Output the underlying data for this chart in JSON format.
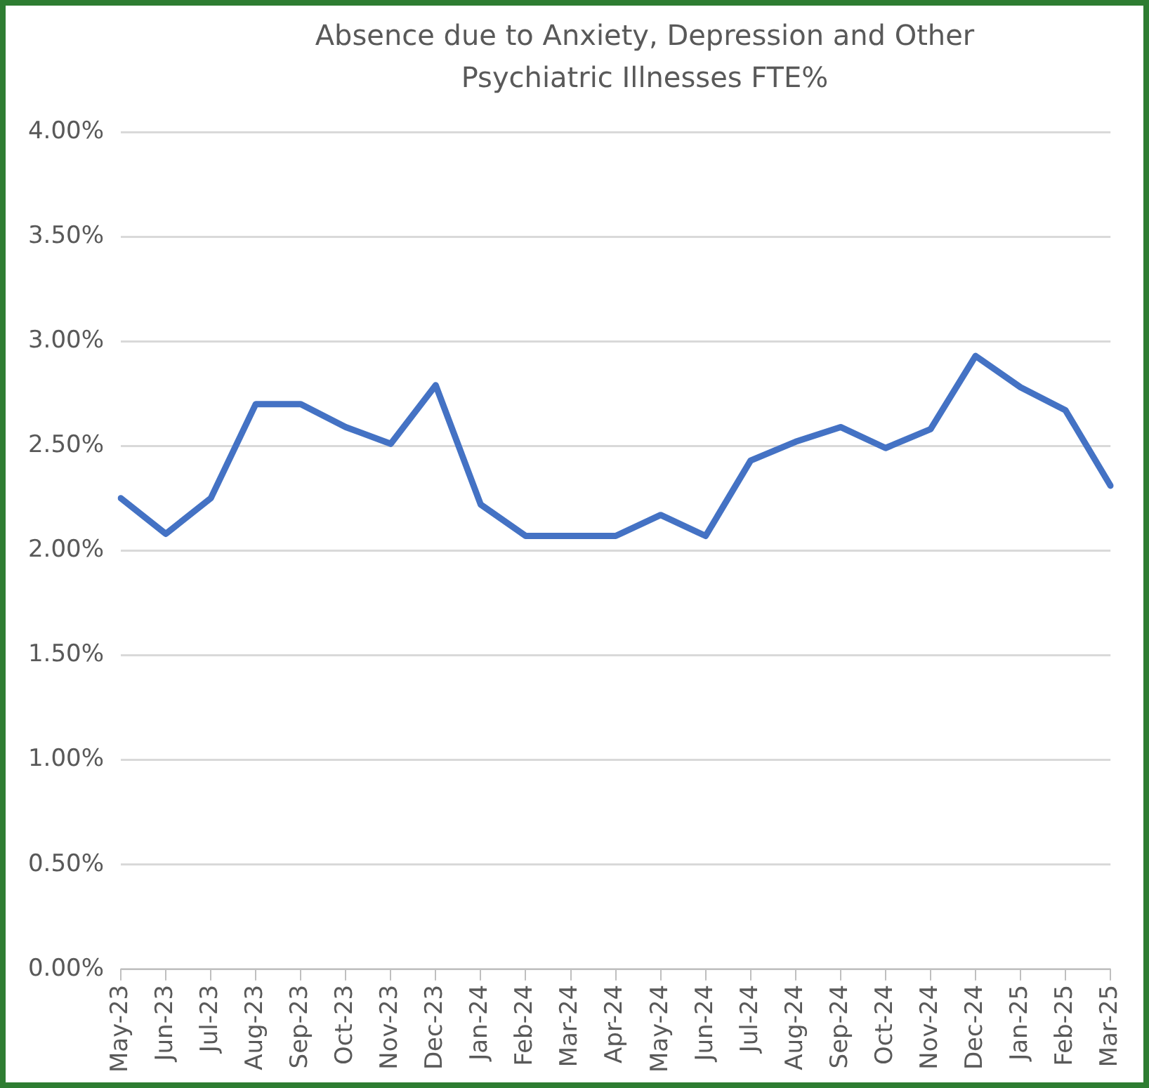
{
  "chart_data": {
    "type": "line",
    "title": "Absence due to Anxiety, Depression and Other Psychiatric Illnesses FTE%",
    "categories": [
      "May-23",
      "Jun-23",
      "Jul-23",
      "Aug-23",
      "Sep-23",
      "Oct-23",
      "Nov-23",
      "Dec-23",
      "Jan-24",
      "Feb-24",
      "Mar-24",
      "Apr-24",
      "May-24",
      "Jun-24",
      "Jul-24",
      "Aug-24",
      "Sep-24",
      "Oct-24",
      "Nov-24",
      "Dec-24",
      "Jan-25",
      "Feb-25",
      "Mar-25"
    ],
    "series": [
      {
        "color": "#4472c4",
        "values": [
          2.25,
          2.08,
          2.25,
          2.7,
          2.7,
          2.59,
          2.51,
          2.79,
          2.22,
          2.07,
          2.07,
          2.07,
          2.17,
          2.07,
          2.43,
          2.52,
          2.59,
          2.49,
          2.58,
          2.93,
          2.78,
          2.67,
          2.31
        ]
      }
    ],
    "ylim": [
      0,
      4
    ],
    "yticks": [
      {
        "value": 0,
        "label": "0.00%"
      },
      {
        "value": 0.5,
        "label": "0.50%"
      },
      {
        "value": 1,
        "label": "1.00%"
      },
      {
        "value": 1.5,
        "label": "1.50%"
      },
      {
        "value": 2,
        "label": "2.00%"
      },
      {
        "value": 2.5,
        "label": "2.50%"
      },
      {
        "value": 3,
        "label": "3.00%"
      },
      {
        "value": 3.5,
        "label": "3.50%"
      },
      {
        "value": 4,
        "label": "4.00%"
      }
    ],
    "grid": "y",
    "legend": false,
    "marker": "none",
    "line_style": "solid"
  }
}
